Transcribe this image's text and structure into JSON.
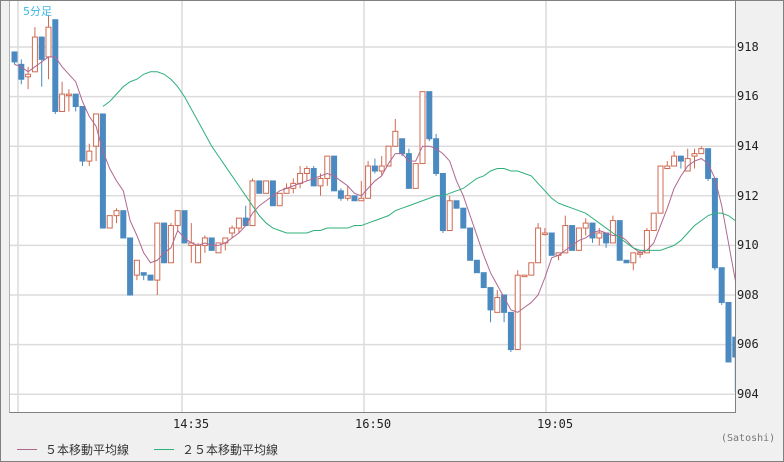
{
  "title": "5分足",
  "credit": "(Satoshi)",
  "legend": [
    {
      "label": "５本移動平均線",
      "color": "#b0678f"
    },
    {
      "label": "２５本移動平均線",
      "color": "#2fb07a"
    }
  ],
  "colors": {
    "up": "#d06a50",
    "down": "#4a8ac0",
    "ma5": "#b0678f",
    "ma25": "#2fb07a",
    "grid": "#dcdcdc",
    "title": "#3fb6e6"
  },
  "y_axis": {
    "labels": [
      "918",
      "916",
      "914",
      "912",
      "910",
      "908",
      "906",
      "904"
    ]
  },
  "x_axis": {
    "labels": [
      "14:35",
      "16:50",
      "19:05"
    ]
  },
  "chart_data": {
    "type": "candlestick",
    "title": "5分足",
    "xlabel": "",
    "ylabel": "",
    "ylim": [
      903.3,
      919.8
    ],
    "x_tick_labels": [
      "14:35",
      "16:50",
      "19:05"
    ],
    "y_tick_labels": [
      918,
      916,
      914,
      912,
      910,
      908,
      906,
      904
    ],
    "grid": true,
    "legend": [
      "５本移動平均線",
      "２５本移動平均線"
    ],
    "legend_position": "bottom-left",
    "note": "OHLC values estimated from pixel positions; one candle per 5 minutes",
    "candles": [
      [
        917.8,
        917.8,
        917.3,
        917.4
      ],
      [
        917.3,
        917.5,
        916.5,
        916.7
      ],
      [
        916.8,
        917.2,
        916.3,
        916.9
      ],
      [
        917.0,
        918.8,
        917.0,
        918.4
      ],
      [
        918.4,
        918.4,
        916.4,
        917.5
      ],
      [
        917.6,
        919.3,
        916.7,
        918.8
      ],
      [
        919.1,
        919.1,
        915.3,
        915.4
      ],
      [
        915.4,
        916.6,
        915.4,
        916.1
      ],
      [
        916.1,
        916.3,
        915.4,
        916.1
      ],
      [
        916.1,
        916.1,
        915.4,
        915.6
      ],
      [
        915.6,
        915.6,
        913.2,
        913.4
      ],
      [
        913.4,
        914.1,
        913.2,
        913.8
      ],
      [
        914.0,
        914.2,
        913.4,
        915.3
      ],
      [
        915.3,
        915.3,
        910.8,
        910.7
      ],
      [
        910.7,
        911.1,
        910.7,
        911.2
      ],
      [
        911.2,
        911.5,
        910.9,
        911.4
      ],
      [
        911.4,
        911.4,
        910.3,
        910.3
      ],
      [
        910.3,
        910.3,
        908.0,
        908.0
      ],
      [
        908.8,
        909.2,
        908.6,
        909.4
      ],
      [
        908.9,
        908.9,
        908.6,
        908.8
      ],
      [
        908.8,
        908.8,
        908.6,
        908.6
      ],
      [
        908.6,
        910.9,
        908.0,
        910.9
      ],
      [
        910.9,
        910.9,
        909.3,
        909.3
      ],
      [
        909.3,
        910.9,
        909.3,
        910.8
      ],
      [
        910.8,
        911.4,
        910.6,
        911.4
      ],
      [
        911.4,
        911.4,
        910.1,
        910.1
      ],
      [
        910.0,
        910.9,
        909.3,
        910.1
      ],
      [
        909.3,
        910.1,
        909.3,
        910.0
      ],
      [
        910.0,
        910.4,
        909.7,
        910.3
      ],
      [
        910.3,
        910.3,
        909.8,
        909.8
      ],
      [
        909.7,
        910.0,
        909.7,
        910.1
      ],
      [
        910.1,
        910.1,
        909.8,
        910.3
      ],
      [
        910.5,
        910.8,
        910.3,
        910.7
      ],
      [
        910.7,
        911.0,
        910.5,
        911.1
      ],
      [
        911.1,
        911.6,
        910.8,
        910.8
      ],
      [
        910.8,
        912.7,
        910.8,
        912.6
      ],
      [
        912.6,
        912.6,
        912.1,
        912.1
      ],
      [
        912.1,
        912.6,
        912.1,
        912.6
      ],
      [
        912.6,
        912.6,
        911.9,
        911.6
      ],
      [
        911.6,
        911.7,
        911.9,
        912.1
      ],
      [
        912.1,
        912.1,
        912.5,
        912.3
      ],
      [
        912.3,
        912.7,
        912.1,
        912.5
      ],
      [
        912.5,
        913.2,
        912.3,
        912.9
      ],
      [
        912.9,
        913.2,
        912.6,
        913.1
      ],
      [
        913.1,
        913.2,
        912.6,
        912.4
      ],
      [
        912.4,
        912.9,
        912.0,
        912.7
      ],
      [
        912.7,
        913.6,
        912.4,
        913.6
      ],
      [
        913.6,
        913.6,
        912.6,
        912.2
      ],
      [
        912.2,
        912.3,
        911.8,
        911.9
      ],
      [
        911.9,
        912.4,
        911.8,
        912.0
      ],
      [
        912.0,
        912.0,
        911.8,
        911.8
      ],
      [
        911.8,
        912.6,
        911.8,
        911.9
      ],
      [
        911.9,
        913.4,
        911.9,
        913.2
      ],
      [
        913.2,
        913.5,
        912.9,
        913.0
      ],
      [
        913.0,
        913.6,
        912.8,
        913.2
      ],
      [
        913.2,
        913.9,
        913.2,
        914.0
      ],
      [
        914.0,
        915.1,
        914.0,
        914.6
      ],
      [
        914.3,
        914.3,
        913.6,
        913.7
      ],
      [
        913.7,
        913.9,
        912.3,
        912.3
      ],
      [
        912.3,
        912.5,
        912.3,
        913.3
      ],
      [
        913.3,
        916.2,
        913.3,
        916.2
      ],
      [
        916.2,
        916.2,
        914.2,
        914.3
      ],
      [
        914.3,
        914.5,
        912.8,
        912.9
      ],
      [
        912.9,
        912.9,
        910.5,
        910.6
      ],
      [
        910.6,
        912.0,
        910.6,
        911.8
      ],
      [
        911.8,
        911.8,
        911.5,
        911.5
      ],
      [
        911.5,
        911.5,
        910.7,
        910.7
      ],
      [
        910.7,
        910.7,
        909.4,
        909.4
      ],
      [
        909.4,
        909.4,
        908.9,
        908.9
      ],
      [
        908.9,
        908.9,
        908.3,
        908.3
      ],
      [
        908.3,
        908.3,
        906.9,
        907.4
      ],
      [
        907.3,
        908.2,
        907.3,
        907.9
      ],
      [
        908.0,
        908.0,
        906.9,
        907.3
      ],
      [
        907.3,
        907.3,
        905.7,
        905.8
      ],
      [
        905.8,
        909.0,
        905.8,
        908.8
      ],
      [
        908.8,
        908.8,
        908.8,
        908.8
      ],
      [
        908.8,
        909.3,
        908.8,
        909.3
      ],
      [
        909.3,
        910.9,
        909.3,
        910.7
      ],
      [
        910.5,
        910.7,
        910.4,
        910.5
      ],
      [
        910.5,
        910.5,
        909.6,
        909.6
      ],
      [
        909.6,
        909.7,
        909.4,
        909.7
      ],
      [
        909.7,
        911.2,
        909.7,
        910.8
      ],
      [
        910.8,
        910.8,
        909.8,
        909.8
      ],
      [
        909.8,
        910.4,
        909.8,
        910.7
      ],
      [
        910.7,
        911.1,
        910.4,
        910.9
      ],
      [
        910.9,
        910.9,
        910.1,
        910.3
      ],
      [
        910.3,
        910.7,
        910.0,
        910.5
      ],
      [
        910.5,
        910.5,
        909.9,
        910.1
      ],
      [
        910.1,
        911.2,
        910.1,
        911.0
      ],
      [
        911.0,
        911.0,
        909.4,
        909.4
      ],
      [
        909.4,
        909.4,
        909.3,
        909.3
      ],
      [
        909.3,
        909.6,
        909.0,
        909.7
      ],
      [
        909.7,
        909.8,
        909.5,
        909.7
      ],
      [
        909.7,
        910.7,
        909.7,
        910.6
      ],
      [
        910.6,
        911.3,
        910.6,
        911.3
      ],
      [
        911.3,
        913.2,
        911.3,
        913.2
      ],
      [
        913.1,
        913.4,
        913.1,
        913.2
      ],
      [
        913.2,
        913.8,
        913.2,
        913.6
      ],
      [
        913.6,
        913.6,
        913.1,
        913.4
      ],
      [
        913.0,
        913.9,
        913.0,
        913.5
      ],
      [
        913.6,
        913.9,
        913.1,
        913.7
      ],
      [
        913.7,
        914.0,
        913.8,
        913.9
      ],
      [
        913.9,
        913.9,
        912.6,
        912.7
      ],
      [
        912.7,
        912.7,
        909.0,
        909.1
      ],
      [
        909.1,
        909.1,
        907.6,
        907.7
      ],
      [
        907.7,
        907.7,
        905.3,
        905.3
      ],
      [
        906.3,
        906.3,
        904.1,
        905.5
      ],
      [
        905.5,
        907.7,
        905.5,
        906.9
      ],
      [
        907.0,
        908.4,
        907.0,
        908.4
      ],
      [
        908.4,
        908.4,
        907.4,
        907.5
      ]
    ],
    "series": [
      {
        "name": "５本移動平均線",
        "values": [
          917.3,
          917.2,
          917.0,
          917.2,
          917.4,
          917.6,
          917.6,
          917.2,
          916.9,
          916.6,
          915.8,
          915.2,
          914.8,
          913.8,
          913.1,
          912.6,
          912.2,
          911.0,
          910.4,
          909.7,
          909.3,
          909.4,
          909.7,
          909.9,
          910.6,
          910.3,
          910.1,
          910.0,
          910.1,
          910.0,
          910.0,
          910.1,
          910.3,
          910.5,
          910.8,
          911.3,
          911.6,
          911.8,
          912.0,
          912.2,
          912.3,
          912.4,
          912.5,
          912.6,
          912.7,
          912.8,
          912.9,
          912.8,
          912.6,
          912.4,
          912.1,
          912.0,
          912.3,
          912.6,
          912.8,
          913.3,
          913.7,
          913.7,
          913.4,
          913.4,
          914.0,
          914.0,
          913.9,
          913.7,
          913.4,
          912.6,
          912.0,
          911.2,
          910.4,
          909.6,
          908.9,
          908.4,
          907.9,
          907.4,
          907.3,
          907.5,
          907.7,
          908.0,
          908.7,
          909.5,
          909.6,
          909.8,
          910.0,
          910.2,
          910.3,
          910.5,
          910.6,
          910.5,
          910.4,
          910.4,
          910.2,
          909.9,
          909.7,
          909.8,
          910.1,
          910.8,
          911.5,
          912.3,
          912.8,
          913.2,
          913.4,
          913.5,
          913.3,
          912.7,
          911.6,
          910.1,
          908.6,
          907.3,
          906.9,
          906.8
        ]
      },
      {
        "name": "２５本移動平均線",
        "values": [
          915.6,
          915.8,
          916.1,
          916.4,
          916.6,
          916.7,
          916.9,
          917.0,
          917.0,
          916.9,
          916.7,
          916.4,
          916.0,
          915.5,
          915.0,
          914.5,
          914.0,
          913.6,
          913.2,
          912.8,
          912.4,
          912.0,
          911.6,
          911.2,
          910.9,
          910.7,
          910.6,
          910.5,
          910.5,
          910.5,
          910.5,
          910.6,
          910.6,
          910.7,
          910.7,
          910.7,
          910.7,
          910.8,
          910.8,
          910.9,
          911.0,
          911.1,
          911.2,
          911.4,
          911.5,
          911.6,
          911.7,
          911.8,
          911.9,
          912.0,
          912.0,
          912.1,
          912.2,
          912.3,
          912.5,
          912.7,
          912.8,
          913.0,
          913.1,
          913.1,
          913.0,
          913.0,
          912.9,
          912.8,
          912.5,
          912.2,
          911.9,
          911.7,
          911.6,
          911.5,
          911.4,
          911.3,
          911.1,
          910.9,
          910.7,
          910.5,
          910.3,
          910.1,
          909.9,
          909.8,
          909.8,
          909.8,
          909.8,
          909.9,
          910.0,
          910.2,
          910.5,
          910.8,
          911.0,
          911.2,
          911.3,
          911.3,
          911.2,
          911.0,
          910.8,
          910.6,
          910.4
        ]
      }
    ]
  }
}
